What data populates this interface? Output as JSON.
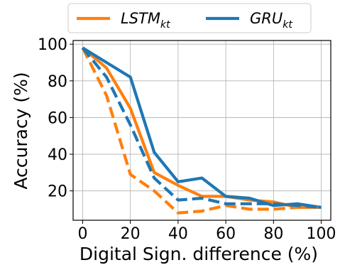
{
  "chart_data": {
    "type": "line",
    "title": "",
    "xlabel": "Digital Sign. difference (%)",
    "ylabel": "Accuracy (%)",
    "xlim": [
      -4,
      104
    ],
    "ylim": [
      4,
      102
    ],
    "xticks": [
      "0",
      "20",
      "40",
      "60",
      "80",
      "100"
    ],
    "yticks": [
      "20",
      "40",
      "60",
      "80",
      "100"
    ],
    "grid": true,
    "legend_position": "top-center",
    "x": [
      0,
      10,
      20,
      30,
      40,
      50,
      60,
      70,
      80,
      90,
      100
    ],
    "series": [
      {
        "key": "lstm_solid",
        "name": "LSTM",
        "name_subscript": "kt",
        "in_legend": true,
        "color": "#ff7f0e",
        "style": "solid",
        "values": [
          98,
          87,
          65,
          30,
          23,
          17,
          17,
          15,
          14,
          11,
          11
        ]
      },
      {
        "key": "gru_solid",
        "name": "GRU",
        "name_subscript": "kt",
        "in_legend": true,
        "color": "#1f77b4",
        "style": "solid",
        "values": [
          98,
          90,
          82,
          41,
          25,
          27,
          17,
          16,
          12,
          13,
          11
        ]
      },
      {
        "key": "lstm_dashed",
        "name": "",
        "in_legend": false,
        "color": "#ff7f0e",
        "style": "dashed",
        "values": [
          98,
          72,
          29,
          20,
          8,
          9,
          12,
          10,
          10,
          11,
          11
        ]
      },
      {
        "key": "gru_dashed",
        "name": "",
        "in_legend": false,
        "color": "#1f77b4",
        "style": "dashed",
        "values": [
          98,
          82,
          56,
          27,
          15,
          16,
          13,
          13,
          13,
          12,
          11
        ]
      }
    ]
  }
}
